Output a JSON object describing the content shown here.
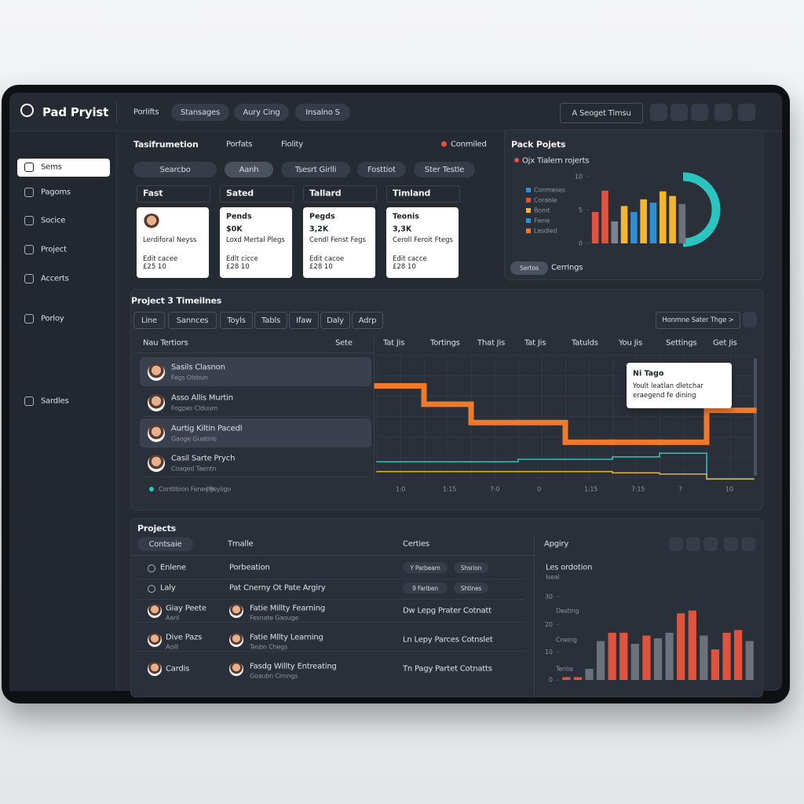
{
  "topbar": {
    "logo": "Pad Pryist",
    "nav": [
      "Porlifts",
      "Stansages",
      "Aury Cing",
      "Insalno S"
    ],
    "search": "A Seoget Timsu"
  },
  "sidebar": {
    "items": [
      "Sems",
      "Pagoms",
      "Socice",
      "Project",
      "Accerts",
      "Porloy",
      "Sardles"
    ]
  },
  "transformation": {
    "title": "Tasifrumetion",
    "tabs": [
      "Porfats",
      "Fiolity"
    ],
    "status": "Conmiled",
    "filters": [
      "Searcbo",
      "Aanh",
      "Tsesrt Girlli",
      "Fosttiot",
      "Ster Testle"
    ],
    "columns": [
      {
        "header": "Fast",
        "lines": [
          "Lerdiforal Neyss",
          "Edit cacee",
          "£25 10"
        ]
      },
      {
        "header": "Sated",
        "lines": [
          "Pends",
          "$0K",
          "Loxd Mertal Plegs",
          "Edlt cicce",
          "£28 10"
        ]
      },
      {
        "header": "Tallard",
        "lines": [
          "Pegds",
          "3,2K",
          "Cendl Fenst Fegs",
          "Edit cacoe",
          "£28 10"
        ]
      },
      {
        "header": "Timland",
        "lines": [
          "Teonis",
          "3,3K",
          "Ceroll Feroit Ftegs",
          "Edit cacce",
          "£28 10"
        ]
      }
    ]
  },
  "timeline": {
    "tabs": [
      "Line",
      "Sannces",
      "Toyls",
      "Tabls",
      "Ifaw",
      "Daly",
      "Adrp"
    ],
    "button": "Honmne Sater Thge >",
    "list_header": "Nau Tertiors",
    "list_sort": "Sete",
    "people": [
      {
        "name": "Sasils Clasnon",
        "sub": "Fegs Olsbun"
      },
      {
        "name": "Asso Allis Murtin",
        "sub": "Fogpes Clduum"
      },
      {
        "name": "Aurtig Kiltin Pacedl",
        "sub": "Gaoge Guatinb"
      },
      {
        "name": "Casil Sarte Prych",
        "sub": "Coaqed Taentn"
      }
    ],
    "footer": [
      "Contlibion Fenesty",
      "| Peyligo"
    ],
    "tooltip": {
      "title": "Ni Tago",
      "text": [
        "Yoult leatlan dletchar",
        "eraegend fe dining"
      ]
    }
  },
  "projects": {
    "title": "Projects",
    "filter": "Contsaie",
    "columns": [
      "Tmalle",
      "Certies",
      "Apgiry"
    ],
    "rows": [
      {
        "name": "Enlene",
        "desc": "Porbeation",
        "tags": [
          "Y Parbeam",
          "Shsrion"
        ]
      },
      {
        "name": "Laly",
        "desc": "Pat Cnerny Ot Pate Argiry",
        "tags": [
          "9 Fariben",
          "Shtines"
        ]
      },
      {
        "name": "Giay Peete",
        "sub": "Aaril",
        "person": "Fatie Millty Fearning",
        "person_sub": "Fesnate Gaouge",
        "status": "Dw Lepg Prater Cotnatt"
      },
      {
        "name": "Dive Pazs",
        "sub": "Aoill",
        "person": "Fatie Mllty Learning",
        "person_sub": "Tesbn Chegs",
        "status": "Ln Lepy Parces Cotnslet"
      },
      {
        "name": "Cardis",
        "person": "Fasdg Willty Entreating",
        "person_sub": "Goaubn Cimngs",
        "status": "Tn Pagy Partet Cotnatts"
      }
    ],
    "side_title": "Les ordotion",
    "side_sub": "Iseal",
    "side_labels": [
      "Desting",
      "Cneing",
      "Tenlia"
    ]
  },
  "chart_data": [
    {
      "type": "bar",
      "title": "Pack Pojets",
      "subtitle": "Ojx Tialern rojerts",
      "legend": [
        {
          "name": "Conmeses",
          "color": "#2f8fd0"
        },
        {
          "name": "Corable",
          "color": "#e0533f"
        },
        {
          "name": "Bomt",
          "color": "#f2b630"
        },
        {
          "name": "Fiene",
          "color": "#2f8fd0"
        },
        {
          "name": "Lasdled",
          "color": "#f07a2a"
        }
      ],
      "values": [
        4.7,
        7.9,
        3.3,
        5.6,
        4.7,
        6.6,
        6.1,
        7.8,
        7.1,
        5.9
      ],
      "colors": [
        "#e0533f",
        "#e0533f",
        "#7d848f",
        "#f2b630",
        "#2f8fd0",
        "#f2b630",
        "#2f8fd0",
        "#f2b630",
        "#f2b630",
        "#6b727c"
      ],
      "ylim": [
        0,
        10
      ],
      "yticks": [
        0,
        5,
        10
      ],
      "tabs": [
        "Sertos",
        "Cerrings"
      ]
    },
    {
      "type": "step",
      "title": "Project 3 Timeilnes",
      "column_headers": [
        "Tat Jis",
        "Tortings",
        "That Jis",
        "Tat Jis",
        "Tatulds",
        "You Jis",
        "Settings",
        "Get Jis"
      ],
      "categories": [
        "1:0",
        "1:15",
        "7:0",
        "0",
        "1:15",
        "7:15",
        "7",
        "10"
      ],
      "series": [
        {
          "color": "#f07a2a",
          "values": [
            7.6,
            6.1,
            4.6,
            4.6,
            3.0,
            3.0,
            3.0,
            5.6
          ]
        },
        {
          "color": "#2bc4c0",
          "values": [
            1.4,
            1.4,
            1.4,
            1.6,
            1.6,
            1.8,
            2.1,
            0
          ]
        },
        {
          "color": "#e2b23a",
          "values": [
            0.6,
            0.6,
            0.6,
            0.6,
            0.6,
            0.5,
            0.4,
            0
          ]
        }
      ],
      "ylim": [
        0,
        10
      ]
    },
    {
      "type": "bar",
      "values": [
        1,
        1,
        4,
        14,
        17,
        17,
        13,
        16,
        15,
        17,
        24,
        25,
        16,
        11,
        17,
        18,
        14
      ],
      "colors": [
        "#e0533f",
        "#e0533f",
        "#6b727c",
        "#6b727c",
        "#e0533f",
        "#e0533f",
        "#6b727c",
        "#e0533f",
        "#6b727c",
        "#6b727c",
        "#e0533f",
        "#e0533f",
        "#6b727c",
        "#e0533f",
        "#e0533f",
        "#e0533f",
        "#6b727c"
      ],
      "ylim": [
        0,
        30
      ],
      "yticks": [
        0,
        10,
        20,
        30
      ]
    }
  ]
}
